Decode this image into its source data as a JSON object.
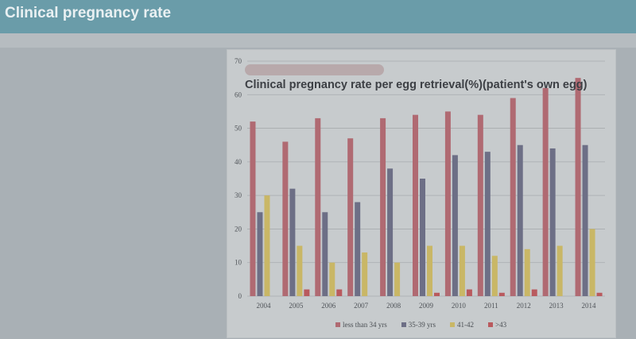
{
  "header": {
    "title": "Clinical pregnancy rate"
  },
  "chart_data": {
    "type": "bar",
    "title": "Clinical pregnancy rate per egg retrieval(%)(patient's own egg)",
    "categories": [
      "2004",
      "2005",
      "2006",
      "2007",
      "2008",
      "2009",
      "2010",
      "2011",
      "2012",
      "2013",
      "2014"
    ],
    "ylim": [
      0,
      70
    ],
    "yticks": [
      0,
      10,
      20,
      30,
      40,
      50,
      60,
      70
    ],
    "grid": true,
    "legend_position": "bottom",
    "series": [
      {
        "name": "less than 34 yrs",
        "color": "#b06a72",
        "values": [
          52,
          46,
          53,
          47,
          53,
          54,
          55,
          54,
          59,
          62,
          65
        ]
      },
      {
        "name": "35-39 yrs",
        "color": "#6d6f86",
        "values": [
          25,
          32,
          25,
          28,
          38,
          35,
          42,
          43,
          45,
          44,
          45
        ]
      },
      {
        "name": "41-42",
        "color": "#c9b766",
        "values": [
          30,
          15,
          10,
          13,
          10,
          15,
          15,
          12,
          14,
          15,
          20
        ]
      },
      {
        "name": ">43",
        "color": "#b95a5e",
        "values": [
          0,
          2,
          2,
          0,
          0,
          1,
          2,
          1,
          2,
          0,
          1
        ]
      }
    ]
  }
}
